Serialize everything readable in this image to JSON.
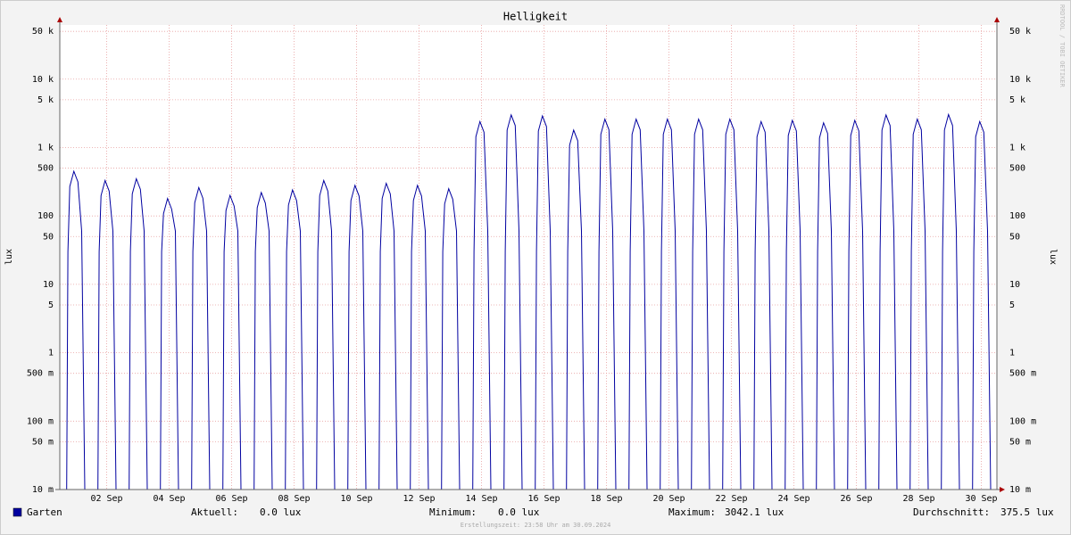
{
  "chart_data": {
    "type": "line",
    "title": "Helligkeit",
    "y_label": "lux",
    "side_text": "RRDTOOL / TOBI OETIKER",
    "footer": "Erstellungszeit: 23:58 Uhr am 30.09.2024",
    "log_scale": true,
    "grid": true,
    "xlim": [
      1,
      31
    ],
    "xticks": [
      {
        "value": 2.5,
        "label": "02 Sep"
      },
      {
        "value": 4.5,
        "label": "04 Sep"
      },
      {
        "value": 6.5,
        "label": "06 Sep"
      },
      {
        "value": 8.5,
        "label": "08 Sep"
      },
      {
        "value": 10.5,
        "label": "10 Sep"
      },
      {
        "value": 12.5,
        "label": "12 Sep"
      },
      {
        "value": 14.5,
        "label": "14 Sep"
      },
      {
        "value": 16.5,
        "label": "16 Sep"
      },
      {
        "value": 18.5,
        "label": "18 Sep"
      },
      {
        "value": 20.5,
        "label": "20 Sep"
      },
      {
        "value": 22.5,
        "label": "22 Sep"
      },
      {
        "value": 24.5,
        "label": "24 Sep"
      },
      {
        "value": 26.5,
        "label": "26 Sep"
      },
      {
        "value": 28.5,
        "label": "28 Sep"
      },
      {
        "value": 30.5,
        "label": "30 Sep"
      }
    ],
    "ylim": [
      0.01,
      62000
    ],
    "yticks": [
      {
        "value": 0.01,
        "label": "10 m"
      },
      {
        "value": 0.05,
        "label": "50 m"
      },
      {
        "value": 0.1,
        "label": "100 m"
      },
      {
        "value": 0.5,
        "label": "500 m"
      },
      1,
      5,
      10,
      50,
      100,
      500,
      {
        "value": 1000,
        "label": "1 k"
      },
      {
        "value": 5000,
        "label": "5 k"
      },
      {
        "value": 10000,
        "label": "10 k"
      },
      {
        "value": 50000,
        "label": "50 k"
      }
    ],
    "x": [
      1.22,
      1.26,
      1.32,
      1.45,
      1.58,
      1.7,
      1.8,
      2.22,
      2.26,
      2.32,
      2.45,
      2.58,
      2.7,
      2.8,
      3.22,
      3.26,
      3.32,
      3.45,
      3.58,
      3.7,
      3.8,
      4.22,
      4.26,
      4.32,
      4.45,
      4.58,
      4.7,
      4.8,
      5.22,
      5.26,
      5.32,
      5.45,
      5.58,
      5.7,
      5.8,
      6.22,
      6.26,
      6.32,
      6.45,
      6.58,
      6.7,
      6.8,
      7.22,
      7.26,
      7.32,
      7.45,
      7.58,
      7.7,
      7.8,
      8.22,
      8.26,
      8.32,
      8.45,
      8.58,
      8.7,
      8.8,
      9.22,
      9.26,
      9.32,
      9.45,
      9.58,
      9.7,
      9.8,
      10.22,
      10.26,
      10.32,
      10.45,
      10.58,
      10.7,
      10.8,
      11.22,
      11.26,
      11.32,
      11.45,
      11.58,
      11.7,
      11.8,
      12.22,
      12.26,
      12.32,
      12.45,
      12.58,
      12.7,
      12.8,
      13.22,
      13.26,
      13.32,
      13.45,
      13.58,
      13.7,
      13.8,
      14.22,
      14.26,
      14.32,
      14.45,
      14.58,
      14.7,
      14.8,
      15.22,
      15.26,
      15.32,
      15.45,
      15.58,
      15.7,
      15.8,
      16.22,
      16.26,
      16.32,
      16.45,
      16.58,
      16.7,
      16.8,
      17.22,
      17.26,
      17.32,
      17.45,
      17.58,
      17.7,
      17.8,
      18.22,
      18.26,
      18.32,
      18.45,
      18.58,
      18.7,
      18.8,
      19.22,
      19.26,
      19.32,
      19.45,
      19.58,
      19.7,
      19.8,
      20.22,
      20.26,
      20.32,
      20.45,
      20.58,
      20.7,
      20.8,
      21.22,
      21.26,
      21.32,
      21.45,
      21.58,
      21.7,
      21.8,
      22.22,
      22.26,
      22.32,
      22.45,
      22.58,
      22.7,
      22.8,
      23.22,
      23.26,
      23.32,
      23.45,
      23.58,
      23.7,
      23.8,
      24.22,
      24.26,
      24.32,
      24.45,
      24.58,
      24.7,
      24.8,
      25.22,
      25.26,
      25.32,
      25.45,
      25.58,
      25.7,
      25.8,
      26.22,
      26.26,
      26.32,
      26.45,
      26.58,
      26.7,
      26.8,
      27.22,
      27.26,
      27.32,
      27.45,
      27.58,
      27.7,
      27.8,
      28.22,
      28.26,
      28.32,
      28.45,
      28.58,
      28.7,
      28.8,
      29.22,
      29.26,
      29.32,
      29.45,
      29.58,
      29.7,
      29.8,
      30.22,
      30.26,
      30.32,
      30.45,
      30.58,
      30.7,
      30.8
    ],
    "series": [
      {
        "name": "Garten",
        "color": "#0000a0",
        "values": [
          0,
          30,
          270,
          450,
          315,
          60,
          0,
          0,
          30,
          198,
          330,
          231,
          60,
          0,
          0,
          30,
          210,
          350,
          245,
          60,
          0,
          0,
          30,
          108,
          180,
          126,
          60,
          0,
          0,
          30,
          156,
          260,
          182,
          60,
          0,
          0,
          30,
          120,
          200,
          140,
          60,
          0,
          0,
          30,
          132,
          220,
          154,
          60,
          0,
          0,
          30,
          144,
          240,
          168,
          60,
          0,
          0,
          30,
          198,
          330,
          231,
          60,
          0,
          0,
          30,
          168,
          280,
          196,
          60,
          0,
          0,
          30,
          180,
          300,
          210,
          60,
          0,
          0,
          30,
          168,
          280,
          196,
          60,
          0,
          0,
          30,
          150,
          250,
          175,
          60,
          0,
          0,
          30,
          1440,
          2400,
          1680,
          60,
          0,
          0,
          30,
          1800,
          3000,
          2100,
          60,
          0,
          0,
          30,
          1740,
          2900,
          2030,
          60,
          0,
          0,
          30,
          1080,
          1800,
          1260,
          60,
          0,
          0,
          30,
          1560,
          2600,
          1820,
          60,
          0,
          0,
          30,
          1560,
          2600,
          1820,
          60,
          0,
          0,
          30,
          1560,
          2600,
          1820,
          60,
          0,
          0,
          30,
          1560,
          2600,
          1820,
          60,
          0,
          0,
          30,
          1560,
          2600,
          1820,
          60,
          0,
          0,
          30,
          1440,
          2400,
          1680,
          60,
          0,
          0,
          30,
          1500,
          2500,
          1750,
          60,
          0,
          0,
          30,
          1380,
          2300,
          1610,
          60,
          0,
          0,
          30,
          1500,
          2500,
          1750,
          60,
          0,
          0,
          30,
          1800,
          3000,
          2100,
          60,
          0,
          0,
          30,
          1560,
          2600,
          1820,
          60,
          0,
          0,
          30,
          1800,
          3042.1,
          2100,
          60,
          0,
          0,
          30,
          1440,
          2400,
          1680,
          60,
          0
        ]
      }
    ],
    "stats": [
      {
        "label": "Aktuell:",
        "value": "0.0 lux"
      },
      {
        "label": "Minimum:",
        "value": "0.0 lux"
      },
      {
        "label": "Maximum:",
        "value": "3042.1 lux"
      },
      {
        "label": "Durchschnitt:",
        "value": "375.5 lux"
      }
    ]
  }
}
